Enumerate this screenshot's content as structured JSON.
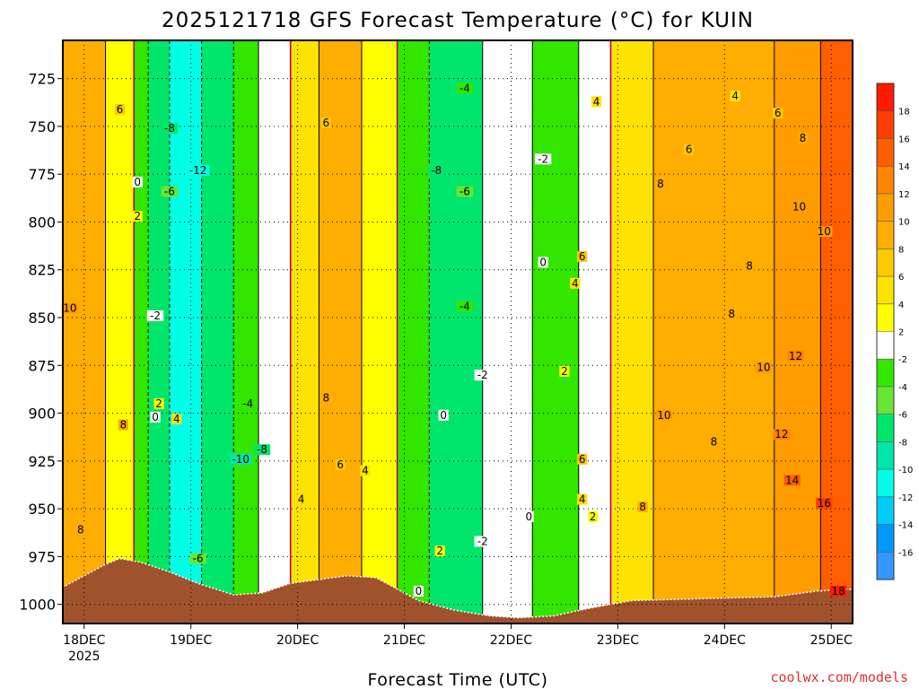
{
  "chart_data": {
    "type": "heatmap",
    "title": "2025121718 GFS Forecast Temperature (°C) for KUIN",
    "xlabel": "Forecast Time (UTC)",
    "ylabel": "Pressure (hPa)",
    "credit": "coolwx.com/models",
    "y_ticks": [
      "725",
      "750",
      "775",
      "800",
      "825",
      "850",
      "875",
      "900",
      "925",
      "950",
      "975",
      "1000"
    ],
    "ylim": [
      1010,
      705
    ],
    "x_ticks": [
      {
        "label": "18DEC",
        "sub": "2025",
        "hour": 6
      },
      {
        "label": "19DEC",
        "sub": "",
        "hour": 36
      },
      {
        "label": "20DEC",
        "sub": "",
        "hour": 66
      },
      {
        "label": "21DEC",
        "sub": "",
        "hour": 96
      },
      {
        "label": "22DEC",
        "sub": "",
        "hour": 126
      },
      {
        "label": "23DEC",
        "sub": "",
        "hour": 156
      },
      {
        "label": "24DEC",
        "sub": "",
        "hour": 186
      },
      {
        "label": "25DEC",
        "sub": "",
        "hour": 216
      }
    ],
    "xlim": [
      0,
      222
    ],
    "colorbar": {
      "levels": [
        "18",
        "16",
        "14",
        "12",
        "10",
        "8",
        "6",
        "4",
        "2",
        "-2",
        "-4",
        "-6",
        "-8",
        "-10",
        "-12",
        "-14",
        "-16"
      ],
      "colors": [
        "#ff1a00",
        "#ff3d00",
        "#ff5e00",
        "#ff8400",
        "#ff9d00",
        "#ffad00",
        "#ffc900",
        "#ffe300",
        "#ffff00",
        "#ffffff",
        "#33e600",
        "#66e633",
        "#00e66b",
        "#00e6a8",
        "#00ffe6",
        "#00ccff",
        "#0099ff",
        "#3399ff"
      ]
    },
    "temperature_bands": [
      {
        "hour_start": 0,
        "hour_end": 12,
        "temp_c": 8
      },
      {
        "hour_start": 12,
        "hour_end": 20,
        "temp_c": 2
      },
      {
        "hour_start": 20,
        "hour_end": 24,
        "temp_c": -4
      },
      {
        "hour_start": 24,
        "hour_end": 30,
        "temp_c": -8
      },
      {
        "hour_start": 30,
        "hour_end": 39,
        "temp_c": -12
      },
      {
        "hour_start": 39,
        "hour_end": 48,
        "temp_c": -8
      },
      {
        "hour_start": 48,
        "hour_end": 55,
        "temp_c": -4
      },
      {
        "hour_start": 55,
        "hour_end": 64,
        "temp_c": 0
      },
      {
        "hour_start": 64,
        "hour_end": 72,
        "temp_c": 4
      },
      {
        "hour_start": 72,
        "hour_end": 84,
        "temp_c": 8
      },
      {
        "hour_start": 84,
        "hour_end": 94,
        "temp_c": 2
      },
      {
        "hour_start": 94,
        "hour_end": 103,
        "temp_c": -4
      },
      {
        "hour_start": 103,
        "hour_end": 118,
        "temp_c": -8
      },
      {
        "hour_start": 118,
        "hour_end": 132,
        "temp_c": 0
      },
      {
        "hour_start": 132,
        "hour_end": 145,
        "temp_c": -4
      },
      {
        "hour_start": 145,
        "hour_end": 154,
        "temp_c": 0
      },
      {
        "hour_start": 154,
        "hour_end": 166,
        "temp_c": 4
      },
      {
        "hour_start": 166,
        "hour_end": 200,
        "temp_c": 8
      },
      {
        "hour_start": 200,
        "hour_end": 213,
        "temp_c": 10
      },
      {
        "hour_start": 213,
        "hour_end": 222,
        "temp_c": 14
      }
    ],
    "contour_labels": [
      {
        "text": "6",
        "hour": 16,
        "hpa": 742
      },
      {
        "text": "0",
        "hour": 21,
        "hpa": 780
      },
      {
        "text": "2",
        "hour": 21,
        "hpa": 798
      },
      {
        "text": "10",
        "hour": 2,
        "hpa": 846
      },
      {
        "text": "8",
        "hour": 17,
        "hpa": 907
      },
      {
        "text": "8",
        "hour": 5,
        "hpa": 962
      },
      {
        "text": "-2",
        "hour": 26,
        "hpa": 850
      },
      {
        "text": "2",
        "hour": 27,
        "hpa": 896
      },
      {
        "text": "0",
        "hour": 26,
        "hpa": 903
      },
      {
        "text": "4",
        "hour": 32,
        "hpa": 904
      },
      {
        "text": "-8",
        "hour": 30,
        "hpa": 752
      },
      {
        "text": "-12",
        "hour": 38,
        "hpa": 774
      },
      {
        "text": "-6",
        "hour": 30,
        "hpa": 785
      },
      {
        "text": "-4",
        "hour": 52,
        "hpa": 896
      },
      {
        "text": "-8",
        "hour": 56,
        "hpa": 920
      },
      {
        "text": "-10",
        "hour": 50,
        "hpa": 925
      },
      {
        "text": "-6",
        "hour": 38,
        "hpa": 977
      },
      {
        "text": "6",
        "hour": 74,
        "hpa": 749
      },
      {
        "text": "8",
        "hour": 74,
        "hpa": 893
      },
      {
        "text": "6",
        "hour": 78,
        "hpa": 928
      },
      {
        "text": "4",
        "hour": 85,
        "hpa": 931
      },
      {
        "text": "4",
        "hour": 67,
        "hpa": 946
      },
      {
        "text": "-4",
        "hour": 113,
        "hpa": 731
      },
      {
        "text": "-8",
        "hour": 105,
        "hpa": 774
      },
      {
        "text": "-6",
        "hour": 113,
        "hpa": 785
      },
      {
        "text": "-2",
        "hour": 135,
        "hpa": 768
      },
      {
        "text": "0",
        "hour": 135,
        "hpa": 822
      },
      {
        "text": "-4",
        "hour": 113,
        "hpa": 845
      },
      {
        "text": "-2",
        "hour": 118,
        "hpa": 881
      },
      {
        "text": "0",
        "hour": 107,
        "hpa": 902
      },
      {
        "text": "0",
        "hour": 131,
        "hpa": 955
      },
      {
        "text": "2",
        "hour": 106,
        "hpa": 973
      },
      {
        "text": "-2",
        "hour": 118,
        "hpa": 968
      },
      {
        "text": "0",
        "hour": 100,
        "hpa": 994
      },
      {
        "text": "2",
        "hour": 141,
        "hpa": 879
      },
      {
        "text": "4",
        "hour": 150,
        "hpa": 738
      },
      {
        "text": "4",
        "hour": 144,
        "hpa": 833
      },
      {
        "text": "6",
        "hour": 146,
        "hpa": 819
      },
      {
        "text": "6",
        "hour": 146,
        "hpa": 925
      },
      {
        "text": "4",
        "hour": 146,
        "hpa": 946
      },
      {
        "text": "2",
        "hour": 149,
        "hpa": 955
      },
      {
        "text": "8",
        "hour": 168,
        "hpa": 781
      },
      {
        "text": "6",
        "hour": 176,
        "hpa": 763
      },
      {
        "text": "4",
        "hour": 189,
        "hpa": 735
      },
      {
        "text": "6",
        "hour": 201,
        "hpa": 744
      },
      {
        "text": "8",
        "hour": 208,
        "hpa": 757
      },
      {
        "text": "10",
        "hour": 207,
        "hpa": 793
      },
      {
        "text": "10",
        "hour": 214,
        "hpa": 806
      },
      {
        "text": "8",
        "hour": 193,
        "hpa": 824
      },
      {
        "text": "8",
        "hour": 188,
        "hpa": 849
      },
      {
        "text": "10",
        "hour": 197,
        "hpa": 877
      },
      {
        "text": "12",
        "hour": 206,
        "hpa": 871
      },
      {
        "text": "10",
        "hour": 169,
        "hpa": 902
      },
      {
        "text": "8",
        "hour": 183,
        "hpa": 916
      },
      {
        "text": "12",
        "hour": 202,
        "hpa": 912
      },
      {
        "text": "14",
        "hour": 205,
        "hpa": 936
      },
      {
        "text": "8",
        "hour": 163,
        "hpa": 950
      },
      {
        "text": "16",
        "hour": 214,
        "hpa": 948
      },
      {
        "text": "18",
        "hour": 218,
        "hpa": 994
      }
    ],
    "terrain": [
      {
        "hour": 0,
        "hpa": 991
      },
      {
        "hour": 6,
        "hpa": 985
      },
      {
        "hour": 12,
        "hpa": 979
      },
      {
        "hour": 16,
        "hpa": 976
      },
      {
        "hour": 22,
        "hpa": 978
      },
      {
        "hour": 30,
        "hpa": 983
      },
      {
        "hour": 38,
        "hpa": 989
      },
      {
        "hour": 48,
        "hpa": 995
      },
      {
        "hour": 56,
        "hpa": 994
      },
      {
        "hour": 64,
        "hpa": 989
      },
      {
        "hour": 72,
        "hpa": 987
      },
      {
        "hour": 80,
        "hpa": 985
      },
      {
        "hour": 88,
        "hpa": 986
      },
      {
        "hour": 94,
        "hpa": 992
      },
      {
        "hour": 100,
        "hpa": 998
      },
      {
        "hour": 110,
        "hpa": 1003
      },
      {
        "hour": 120,
        "hpa": 1006
      },
      {
        "hour": 128,
        "hpa": 1007
      },
      {
        "hour": 138,
        "hpa": 1006
      },
      {
        "hour": 148,
        "hpa": 1002
      },
      {
        "hour": 160,
        "hpa": 998
      },
      {
        "hour": 180,
        "hpa": 997
      },
      {
        "hour": 200,
        "hpa": 996
      },
      {
        "hour": 212,
        "hpa": 993
      },
      {
        "hour": 222,
        "hpa": 992
      }
    ]
  }
}
